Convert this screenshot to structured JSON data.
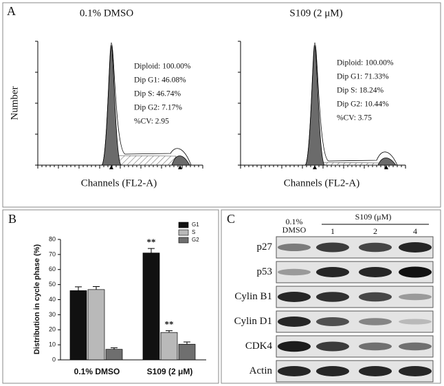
{
  "panel_a": {
    "label": "A",
    "y_axis_label": "Number",
    "plots": [
      {
        "title": "0.1% DMSO",
        "x_axis_label": "Channels (FL2-A)",
        "stats": [
          "Diploid: 100.00%",
          "Dip G1: 46.08%",
          "Dip S:   46.74%",
          "Dip G2: 7.17%",
          "%CV:  2.95"
        ]
      },
      {
        "title": "S109 (2 μM)",
        "x_axis_label": "Channels (FL2-A)",
        "stats": [
          "Diploid: 100.00%",
          "Dip G1: 71.33%",
          "Dip S:   18.24%",
          "Dip G2: 10.44%",
          "%CV:  3.75"
        ]
      }
    ]
  },
  "panel_b_label": "B",
  "chart_data": {
    "type": "bar",
    "y_axis_label": "Distribution in cycle phase (%)",
    "categories": [
      "0.1% DMSO",
      "S109 (2 μM)"
    ],
    "series": [
      {
        "name": "G1",
        "color": "#111111",
        "values": [
          46,
          71
        ],
        "errors": [
          2.5,
          3
        ]
      },
      {
        "name": "S",
        "color": "#b9b9b9",
        "values": [
          46.7,
          18.2
        ],
        "errors": [
          2,
          1.2
        ]
      },
      {
        "name": "G2",
        "color": "#6f6f6f",
        "values": [
          7,
          10.4
        ],
        "errors": [
          1,
          1.5
        ]
      }
    ],
    "annotations": [
      {
        "series": 0,
        "category": 1,
        "text": "**"
      },
      {
        "series": 1,
        "category": 1,
        "text": "**"
      }
    ],
    "ylim": [
      0,
      80
    ],
    "yticks": [
      0,
      10,
      20,
      30,
      40,
      50,
      60,
      70,
      80
    ],
    "legend": "top-right"
  },
  "panel_c": {
    "label": "C",
    "control_label": "0.1% DMSO",
    "treatment_label": "S109 (μM)",
    "doses": [
      "1",
      "2",
      "4"
    ],
    "proteins": [
      "p27",
      "p53",
      "Cylin B1",
      "Cylin D1",
      "CDK4",
      "Actin"
    ]
  }
}
